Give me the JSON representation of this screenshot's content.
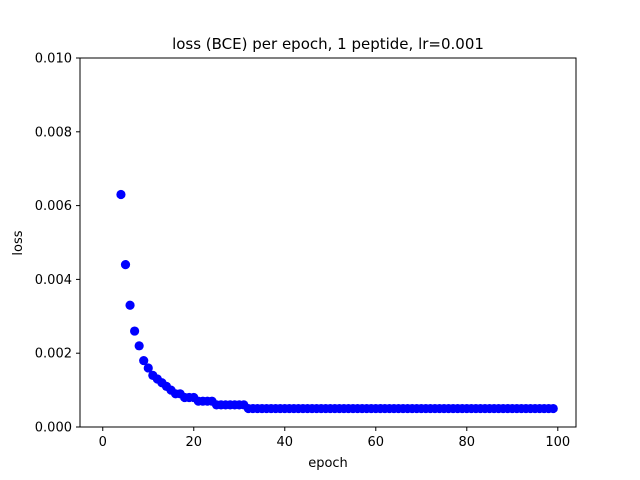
{
  "chart_data": {
    "type": "scatter",
    "title": "loss (BCE) per epoch, 1 peptide, lr=0.001",
    "xlabel": "epoch",
    "ylabel": "loss",
    "xlim": [
      -5,
      104
    ],
    "ylim": [
      0,
      0.01
    ],
    "x_ticks": [
      0,
      20,
      40,
      60,
      80,
      100
    ],
    "y_ticks": [
      0.0,
      0.002,
      0.004,
      0.006,
      0.008,
      0.01
    ],
    "y_tick_labels": [
      "0.000",
      "0.002",
      "0.004",
      "0.006",
      "0.008",
      "0.010"
    ],
    "grid": false,
    "marker_color": "#0000ff",
    "series": [
      {
        "x": [
          4,
          5,
          6,
          7,
          8,
          9,
          10,
          11,
          12,
          13,
          14,
          15,
          16,
          17,
          18,
          19,
          20,
          21,
          22,
          23,
          24,
          25,
          26,
          27,
          28,
          29,
          30,
          31,
          32,
          33,
          34,
          35,
          36,
          37,
          38,
          39,
          40,
          41,
          42,
          43,
          44,
          45,
          46,
          47,
          48,
          49,
          50,
          51,
          52,
          53,
          54,
          55,
          56,
          57,
          58,
          59,
          60,
          61,
          62,
          63,
          64,
          65,
          66,
          67,
          68,
          69,
          70,
          71,
          72,
          73,
          74,
          75,
          76,
          77,
          78,
          79,
          80,
          81,
          82,
          83,
          84,
          85,
          86,
          87,
          88,
          89,
          90,
          91,
          92,
          93,
          94,
          95,
          96,
          97,
          98,
          99
        ],
        "y": [
          0.0063,
          0.0044,
          0.0033,
          0.0026,
          0.0022,
          0.0018,
          0.0016,
          0.0014,
          0.0013,
          0.0012,
          0.0011,
          0.001,
          0.0009,
          0.0009,
          0.0008,
          0.0008,
          0.0008,
          0.0007,
          0.0007,
          0.0007,
          0.0007,
          0.0006,
          0.0006,
          0.0006,
          0.0006,
          0.0006,
          0.0006,
          0.0006,
          0.0005,
          0.0005,
          0.0005,
          0.0005,
          0.0005,
          0.0005,
          0.0005,
          0.0005,
          0.0005,
          0.0005,
          0.0005,
          0.0005,
          0.0005,
          0.0005,
          0.0005,
          0.0005,
          0.0005,
          0.0005,
          0.0005,
          0.0005,
          0.0005,
          0.0005,
          0.0005,
          0.0005,
          0.0005,
          0.0005,
          0.0005,
          0.0005,
          0.0005,
          0.0005,
          0.0005,
          0.0005,
          0.0005,
          0.0005,
          0.0005,
          0.0005,
          0.0005,
          0.0005,
          0.0005,
          0.0005,
          0.0005,
          0.0005,
          0.0005,
          0.0005,
          0.0005,
          0.0005,
          0.0005,
          0.0005,
          0.0005,
          0.0005,
          0.0005,
          0.0005,
          0.0005,
          0.0005,
          0.0005,
          0.0005,
          0.0005,
          0.0005,
          0.0005,
          0.0005,
          0.0005,
          0.0005,
          0.0005,
          0.0005,
          0.0005,
          0.0005,
          0.0005,
          0.0005
        ]
      }
    ]
  }
}
